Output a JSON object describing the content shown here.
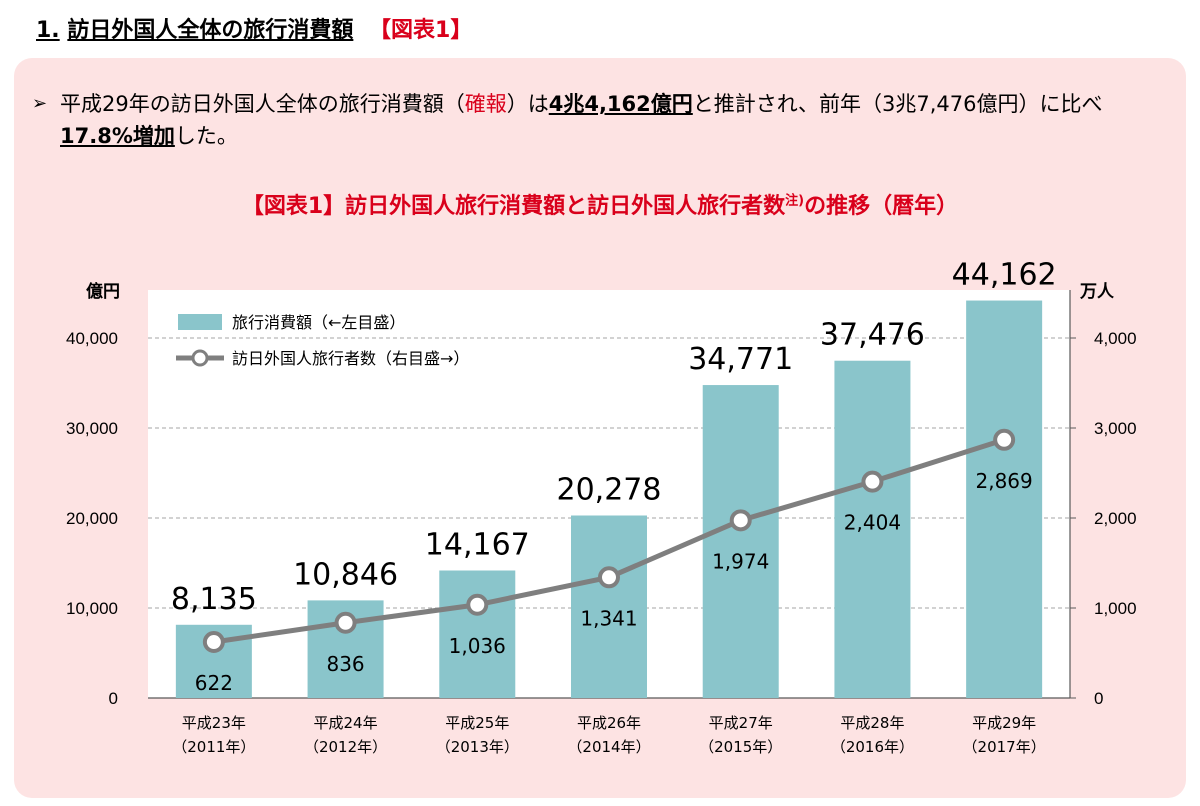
{
  "heading": {
    "number": "1.",
    "text": "訪日外国人全体の旅行消費額",
    "tag": "【図表1】"
  },
  "summary": {
    "bullet": "➢",
    "parts": [
      {
        "text": "平成29年の訪日外国人全体の旅行消費額（",
        "style": ""
      },
      {
        "text": "確報",
        "style": "red"
      },
      {
        "text": "）は",
        "style": ""
      },
      {
        "text": "4兆4,162億円",
        "style": "em"
      },
      {
        "text": "と推計され、前年（3兆7,476億円）に比べ",
        "style": ""
      },
      {
        "text": "17.8%増加",
        "style": "em"
      },
      {
        "text": "した。",
        "style": ""
      }
    ]
  },
  "figure_title": {
    "main": "【図表1】訪日外国人旅行消費額と訪日外国人旅行者数",
    "note": "注)",
    "tail": "の推移（暦年）"
  },
  "colors": {
    "bar": "#8ac5cb",
    "line": "#7f7f7f",
    "accent_red": "#d9001b",
    "panel": "#fde3e3"
  },
  "chart_data": {
    "type": "bar",
    "categories": [
      "平成23年",
      "平成24年",
      "平成25年",
      "平成26年",
      "平成27年",
      "平成28年",
      "平成29年"
    ],
    "sublabels": [
      "（2011年）",
      "（2012年）",
      "（2013年）",
      "（2014年）",
      "（2015年）",
      "（2016年）",
      "（2017年）"
    ],
    "series": [
      {
        "name": "旅行消費額（←左目盛）",
        "type": "bar",
        "axis": "left",
        "values": [
          8135,
          10846,
          14167,
          20278,
          34771,
          37476,
          44162
        ],
        "labels": [
          "8,135",
          "10,846",
          "14,167",
          "20,278",
          "34,771",
          "37,476",
          "44,162"
        ]
      },
      {
        "name": "訪日外国人旅行者数（右目盛→）",
        "type": "line",
        "axis": "right",
        "values": [
          622,
          836,
          1036,
          1341,
          1974,
          2404,
          2869
        ],
        "labels": [
          "622",
          "836",
          "1,036",
          "1,341",
          "1,974",
          "2,404",
          "2,869"
        ]
      }
    ],
    "left_axis": {
      "unit": "億円",
      "ylim": [
        0,
        45000
      ],
      "ticks": [
        0,
        10000,
        20000,
        30000,
        40000
      ],
      "tick_labels": [
        "0",
        "10,000",
        "20,000",
        "30,000",
        "40,000"
      ]
    },
    "right_axis": {
      "unit": "万人",
      "ylim": [
        0,
        4500
      ],
      "ticks": [
        0,
        1000,
        2000,
        3000,
        4000
      ],
      "tick_labels": [
        "0",
        "1,000",
        "2,000",
        "3,000",
        "4,000"
      ]
    },
    "grid": "horizontal-dashed",
    "legend": "top-left"
  }
}
